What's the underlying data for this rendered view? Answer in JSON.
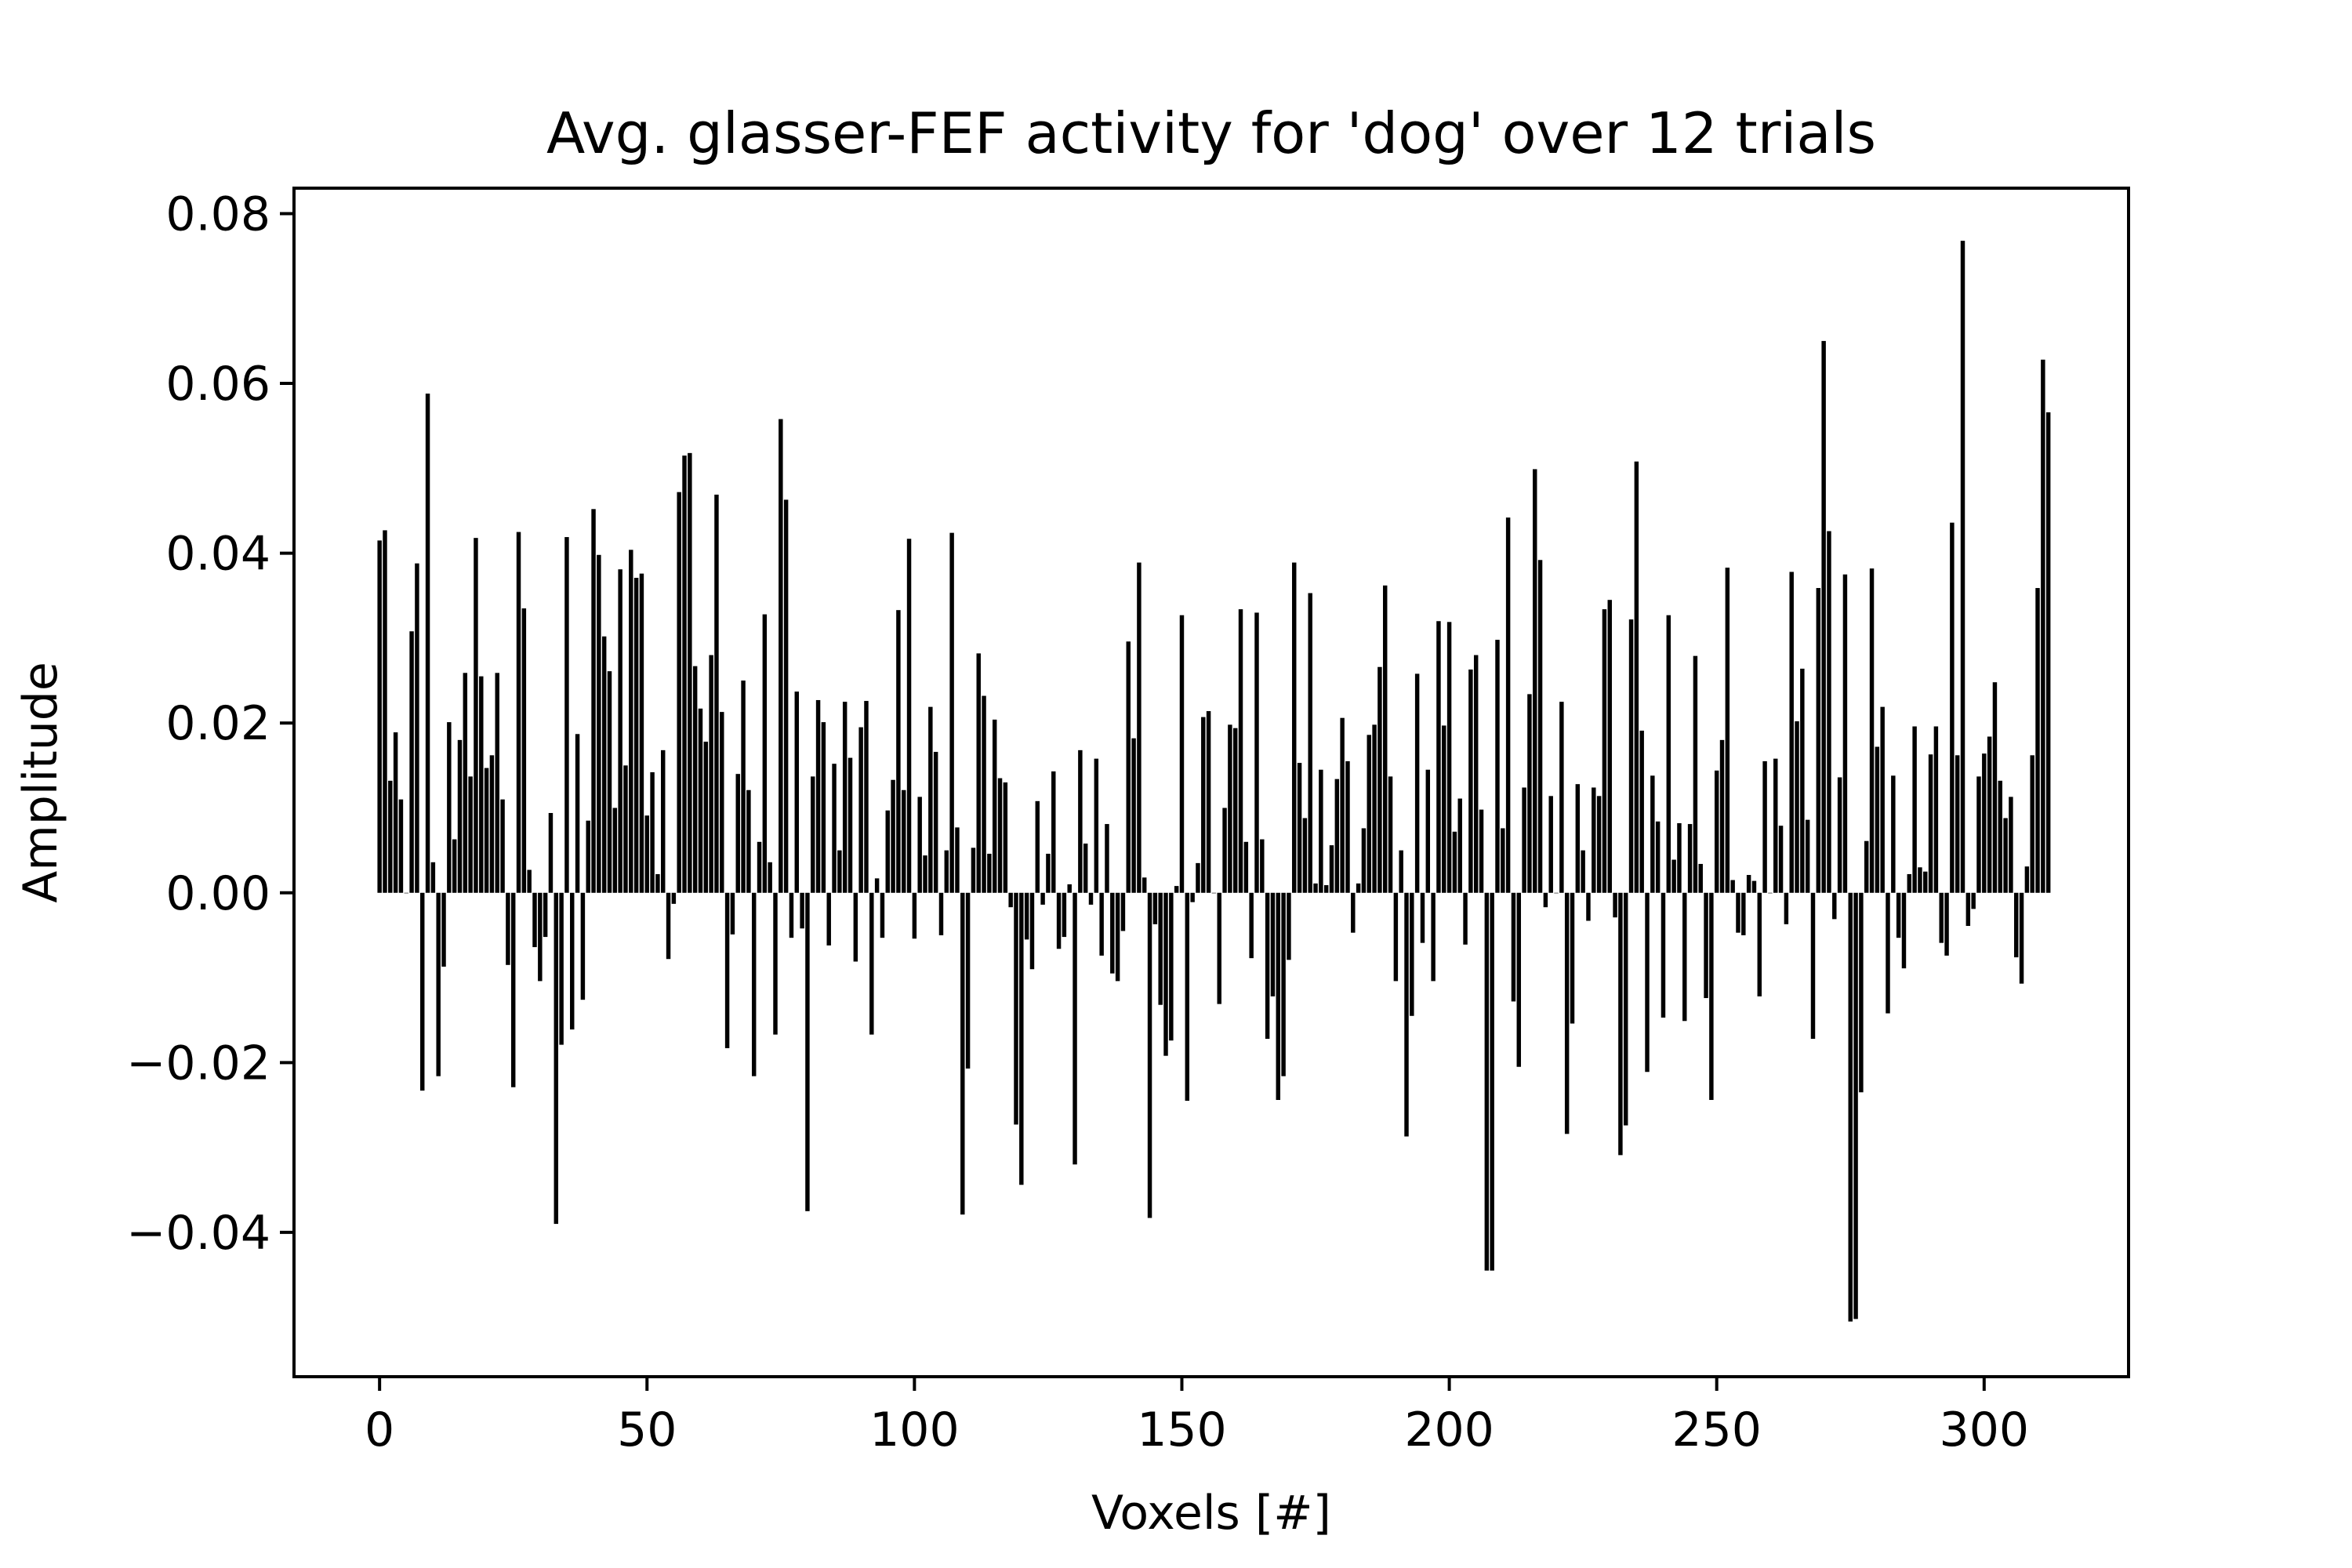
{
  "chart_data": {
    "type": "bar",
    "title": "Avg. glasser-FEF activity for 'dog' over 12 trials",
    "xlabel": "Voxels [#]",
    "ylabel": "Amplitude",
    "xlim": [
      -16,
      327
    ],
    "ylim": [
      -0.057,
      0.083
    ],
    "grid": false,
    "bar_color": "#000000",
    "x_ticks": [
      0,
      50,
      100,
      150,
      200,
      250,
      300
    ],
    "x_tick_labels": [
      "0",
      "50",
      "100",
      "150",
      "200",
      "250",
      "300"
    ],
    "y_ticks": [
      -0.04,
      -0.02,
      0,
      0.02,
      0.04,
      0.06,
      0.08
    ],
    "y_tick_labels": [
      "−0.04",
      "−0.02",
      "0.00",
      "0.02",
      "0.04",
      "0.06",
      "0.08"
    ],
    "values": [
      0.0415,
      0.0427,
      0.0132,
      0.0189,
      0.011,
      0.0,
      0.0308,
      0.0388,
      -0.0233,
      0.0588,
      0.0036,
      -0.0216,
      -0.0087,
      0.0201,
      0.0063,
      0.018,
      0.0259,
      0.0137,
      0.0418,
      0.0255,
      0.0147,
      0.0162,
      0.0259,
      0.011,
      -0.0085,
      -0.0229,
      0.0425,
      0.0335,
      0.0027,
      -0.0064,
      -0.0104,
      -0.0052,
      0.0094,
      -0.039,
      -0.0179,
      0.0419,
      -0.0161,
      0.0187,
      -0.0126,
      0.0085,
      0.0452,
      0.0398,
      0.0302,
      0.0261,
      0.01,
      0.0381,
      0.015,
      0.0404,
      0.0371,
      0.0376,
      0.0091,
      0.0142,
      0.0022,
      0.0168,
      -0.0078,
      -0.0013,
      0.0472,
      0.0515,
      0.0518,
      0.0267,
      0.0217,
      0.0178,
      0.028,
      0.0469,
      0.0213,
      -0.0183,
      -0.0049,
      0.014,
      0.025,
      0.0121,
      -0.0216,
      0.006,
      0.0328,
      0.0036,
      -0.0167,
      0.0558,
      0.0463,
      -0.0053,
      0.0237,
      -0.0042,
      -0.0375,
      0.0137,
      0.0227,
      0.0201,
      -0.0062,
      0.0152,
      0.005,
      0.0225,
      0.0159,
      -0.0081,
      0.0195,
      0.0226,
      -0.0167,
      0.0017,
      -0.0053,
      0.0097,
      0.0133,
      0.0333,
      0.0121,
      0.0417,
      -0.0054,
      0.0113,
      0.0044,
      0.0219,
      0.0166,
      -0.005,
      0.005,
      0.0424,
      0.0077,
      -0.0379,
      -0.0207,
      0.0053,
      0.0282,
      0.0232,
      0.0046,
      0.0204,
      0.0135,
      0.013,
      -0.0017,
      -0.0273,
      -0.0344,
      -0.0055,
      -0.009,
      0.0108,
      -0.0014,
      0.0046,
      0.0143,
      -0.0066,
      -0.0052,
      0.001,
      -0.032,
      0.0168,
      0.0058,
      -0.0014,
      0.0158,
      -0.0074,
      0.0081,
      -0.0095,
      -0.0104,
      -0.0045,
      0.0296,
      0.0182,
      0.0389,
      0.0018,
      -0.0383,
      -0.0037,
      -0.0132,
      -0.0192,
      -0.0174,
      0.0008,
      0.0327,
      -0.0245,
      -0.0011,
      0.0035,
      0.0207,
      0.0214,
      0.0,
      -0.0131,
      0.01,
      0.0198,
      0.0194,
      0.0334,
      0.006,
      -0.0077,
      0.033,
      0.0063,
      -0.0172,
      -0.0122,
      -0.0244,
      -0.0216,
      -0.0079,
      0.0389,
      0.0153,
      0.0088,
      0.0353,
      0.0011,
      0.0145,
      0.0009,
      0.0056,
      0.0134,
      0.0206,
      0.0155,
      -0.0047,
      0.0011,
      0.0076,
      0.0186,
      0.0198,
      0.0266,
      0.0362,
      0.0137,
      -0.0104,
      0.005,
      -0.0287,
      -0.0145,
      0.0258,
      -0.0059,
      0.0145,
      -0.0104,
      0.032,
      0.0197,
      0.0319,
      0.0072,
      0.0111,
      -0.0061,
      0.0263,
      0.028,
      0.0098,
      -0.0445,
      -0.0445,
      0.0298,
      0.0076,
      0.0442,
      -0.0128,
      -0.0205,
      0.0124,
      0.0234,
      0.0499,
      0.0392,
      -0.0017,
      0.0114,
      0.0,
      0.0225,
      -0.0284,
      -0.0154,
      0.0128,
      0.005,
      -0.0033,
      0.0124,
      0.0114,
      0.0334,
      0.0345,
      -0.0029,
      -0.0309,
      -0.0274,
      0.0322,
      0.0508,
      0.0191,
      -0.0211,
      0.0138,
      0.0084,
      -0.0147,
      0.0327,
      0.0039,
      0.0082,
      -0.0151,
      0.0081,
      0.0279,
      0.0034,
      -0.0124,
      -0.0244,
      0.0144,
      0.018,
      0.0383,
      0.0015,
      -0.0047,
      -0.005,
      0.0021,
      0.0014,
      -0.0122,
      0.0155,
      0.0,
      0.0158,
      0.0079,
      -0.0037,
      0.0378,
      0.0202,
      0.0264,
      0.0086,
      -0.0172,
      0.0359,
      0.065,
      0.0426,
      -0.0031,
      0.0136,
      0.0375,
      -0.0505,
      -0.0502,
      -0.0235,
      0.0061,
      0.0382,
      0.0172,
      0.0219,
      -0.0142,
      0.0138,
      -0.0053,
      -0.0089,
      0.0022,
      0.0196,
      0.003,
      0.0025,
      0.0163,
      0.0196,
      -0.0059,
      -0.0074,
      0.0436,
      0.0162,
      0.0768,
      -0.0039,
      -0.0019,
      0.0137,
      0.0164,
      0.0184,
      0.0248,
      0.0132,
      0.0088,
      0.0113,
      -0.0076,
      -0.0107,
      0.0031,
      0.0162,
      0.0359,
      0.0628,
      0.0566
    ]
  }
}
